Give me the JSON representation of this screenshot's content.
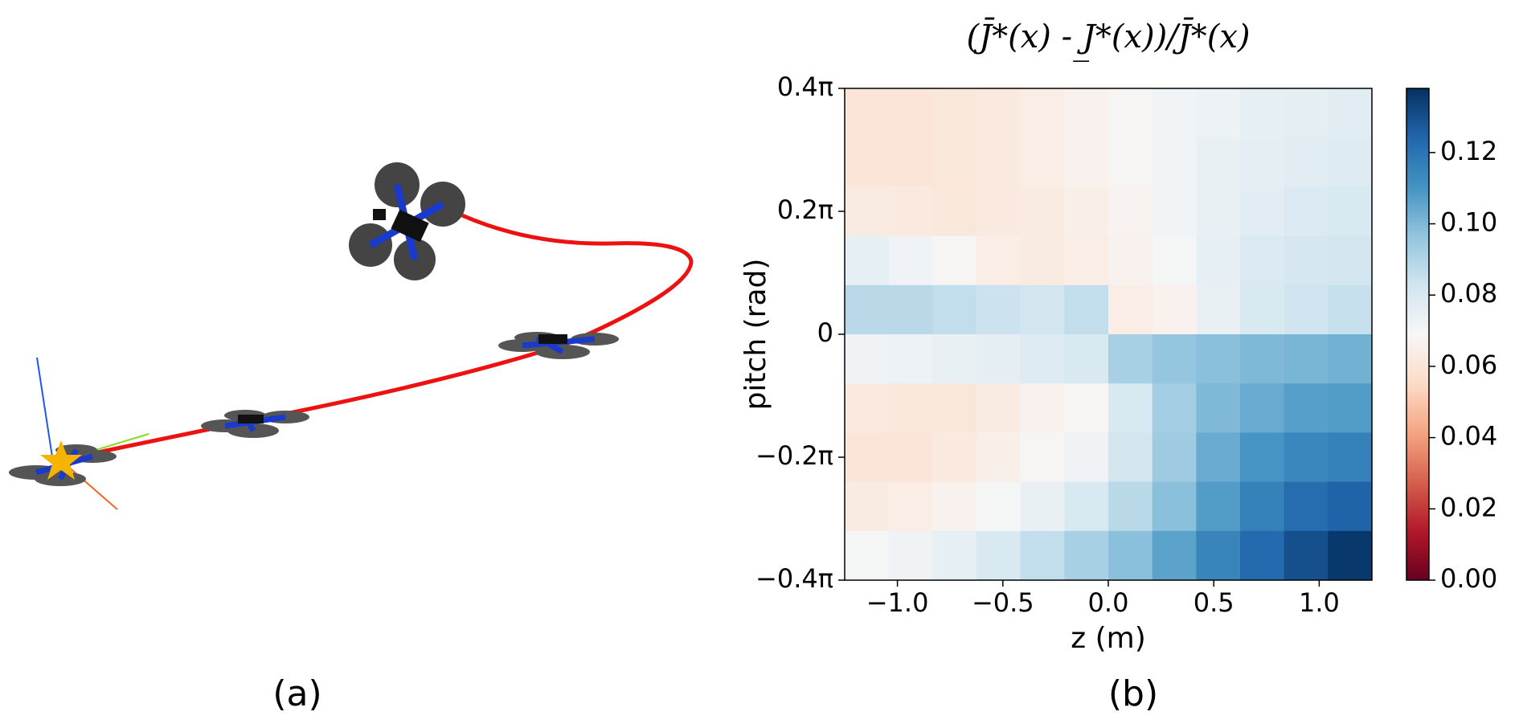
{
  "panel_labels": [
    "(a)",
    "(b)"
  ],
  "chart_data": {
    "type": "heatmap",
    "title": "(J̄*(x) - J̲*(x))/J̄*(x)",
    "xlabel": "z (m)",
    "ylabel": "pitch (rad)",
    "xlim": [
      -1.25,
      1.25
    ],
    "ylim": [
      -1.2566,
      1.2566
    ],
    "xticks": [
      {
        "value": -1.0,
        "label": "−1.0"
      },
      {
        "value": -0.5,
        "label": "−0.5"
      },
      {
        "value": 0.0,
        "label": "0.0"
      },
      {
        "value": 0.5,
        "label": "0.5"
      },
      {
        "value": 1.0,
        "label": "1.0"
      }
    ],
    "yticks": [
      {
        "value": -1.2566,
        "label": "−0.4π"
      },
      {
        "value": -0.6283,
        "label": "−0.2π"
      },
      0,
      {
        "value": 0.6283,
        "label": "0.2π"
      },
      {
        "value": 1.2566,
        "label": "0.4π"
      }
    ],
    "cmap": "RdBu",
    "clim": [
      0,
      0.138
    ],
    "cticks": [
      {
        "value": 0,
        "label": "0.00"
      },
      {
        "value": 0.02,
        "label": "0.02"
      },
      {
        "value": 0.04,
        "label": "0.04"
      },
      {
        "value": 0.06,
        "label": "0.06"
      },
      {
        "value": 0.08,
        "label": "0.08"
      },
      {
        "value": 0.1,
        "label": "0.10"
      },
      {
        "value": 0.12,
        "label": "0.12"
      }
    ],
    "z": [
      [
        0.06,
        0.06,
        0.061,
        0.062,
        0.064,
        0.066,
        0.068,
        0.071,
        0.073,
        0.075,
        0.076,
        0.077
      ],
      [
        0.06,
        0.06,
        0.061,
        0.062,
        0.064,
        0.066,
        0.068,
        0.071,
        0.074,
        0.076,
        0.077,
        0.078
      ],
      [
        0.063,
        0.062,
        0.061,
        0.062,
        0.063,
        0.065,
        0.067,
        0.071,
        0.074,
        0.077,
        0.079,
        0.08
      ],
      [
        0.075,
        0.072,
        0.068,
        0.064,
        0.063,
        0.064,
        0.066,
        0.07,
        0.075,
        0.079,
        0.081,
        0.082
      ],
      [
        0.088,
        0.088,
        0.086,
        0.084,
        0.082,
        0.086,
        0.064,
        0.066,
        0.074,
        0.08,
        0.083,
        0.085
      ],
      [
        0.072,
        0.073,
        0.074,
        0.076,
        0.078,
        0.08,
        0.092,
        0.096,
        0.098,
        0.1,
        0.101,
        0.102
      ],
      [
        0.062,
        0.061,
        0.061,
        0.063,
        0.066,
        0.068,
        0.08,
        0.093,
        0.1,
        0.104,
        0.107,
        0.108
      ],
      [
        0.06,
        0.06,
        0.062,
        0.065,
        0.068,
        0.072,
        0.082,
        0.094,
        0.104,
        0.11,
        0.114,
        0.116
      ],
      [
        0.063,
        0.064,
        0.066,
        0.07,
        0.074,
        0.08,
        0.088,
        0.098,
        0.108,
        0.116,
        0.122,
        0.125
      ],
      [
        0.07,
        0.072,
        0.075,
        0.08,
        0.086,
        0.092,
        0.098,
        0.106,
        0.115,
        0.123,
        0.13,
        0.136
      ]
    ]
  }
}
